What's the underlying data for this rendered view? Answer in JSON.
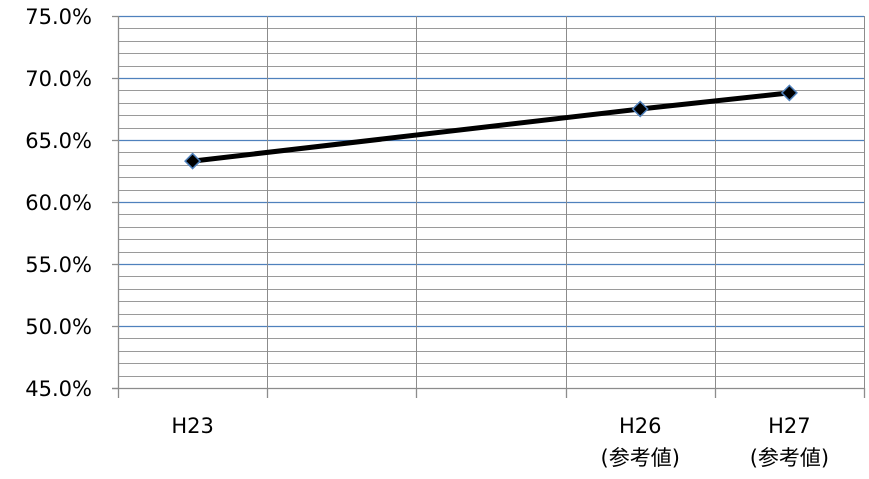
{
  "chart_data": {
    "type": "line",
    "title": "",
    "xlabel": "",
    "ylabel": "",
    "x_categories": [
      [
        "H23"
      ],
      [],
      [],
      [
        "H26",
        "(参考値)"
      ],
      [
        "H27",
        "(参考値)"
      ]
    ],
    "y_ticks": [
      "45.0%",
      "50.0%",
      "55.0%",
      "60.0%",
      "65.0%",
      "70.0%",
      "75.0%"
    ],
    "ylim": [
      45.0,
      75.0
    ],
    "y_major_step": 5.0,
    "y_minor_step": 1.0,
    "series": [
      {
        "points": [
          {
            "category_index": 0,
            "value": 63.3
          },
          {
            "category_index": 3,
            "value": 67.5
          },
          {
            "category_index": 4,
            "value": 68.8
          }
        ]
      }
    ],
    "style": {
      "major_grid_color": "#4f81bd",
      "minor_grid_color": "#9a9a9a",
      "vertical_grid_color": "#8c8c8c",
      "axis_color": "#8c8c8c",
      "line_color": "#000000",
      "marker_fill": "#000000",
      "marker_stroke": "#4f81bd",
      "marker_shape": "diamond"
    },
    "grid": true,
    "legend": "none"
  }
}
